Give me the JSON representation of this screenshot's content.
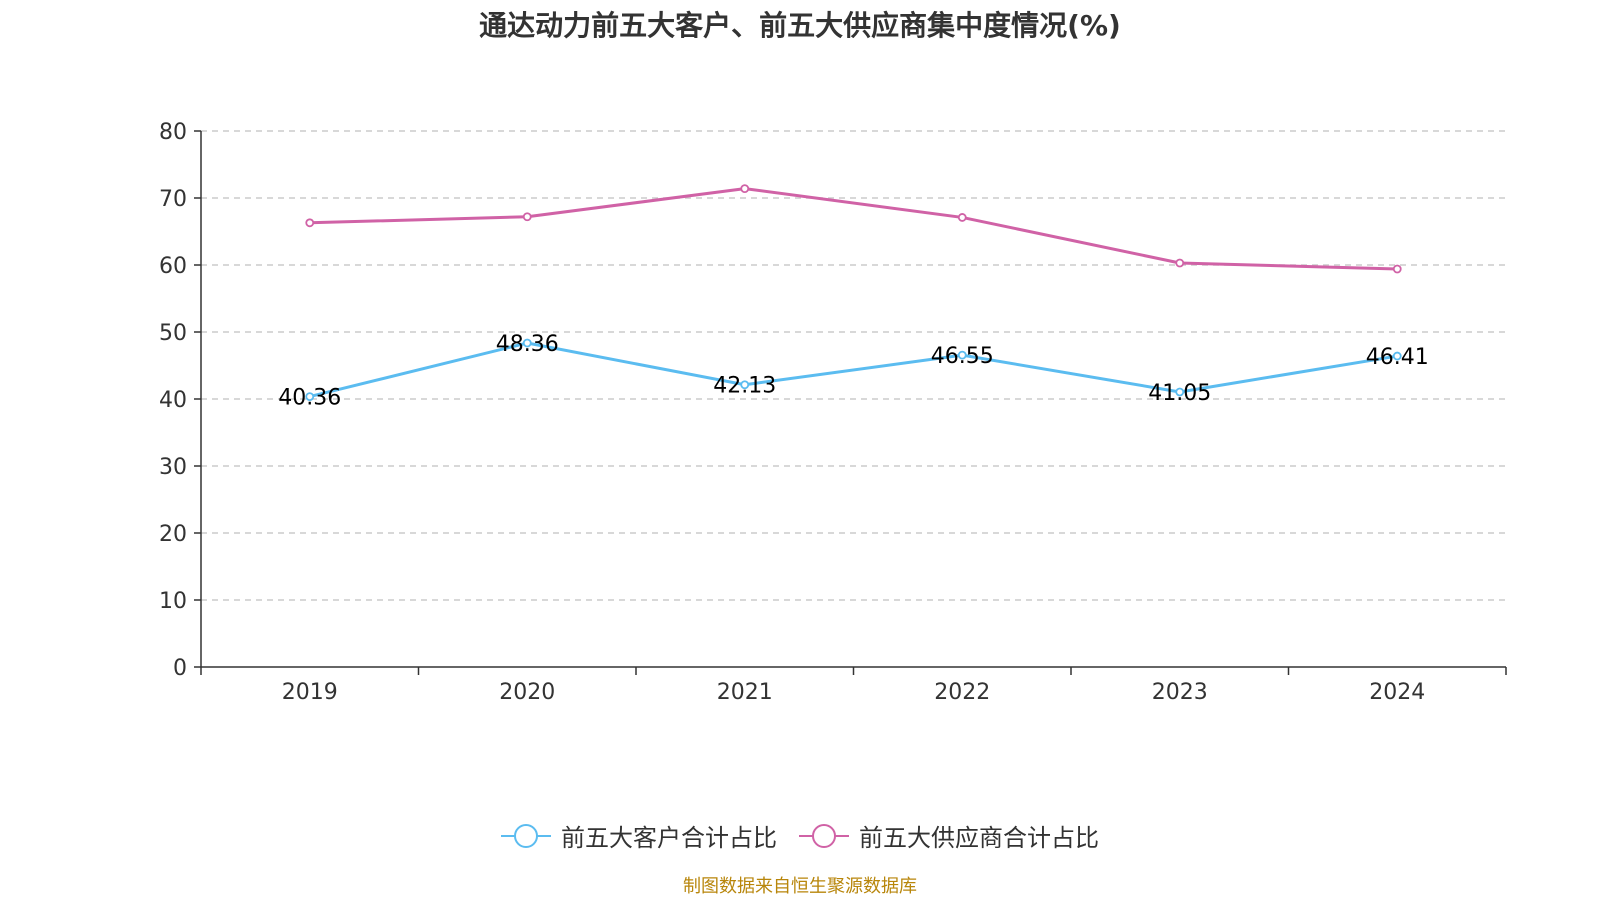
{
  "title": "通达动力前五大客户、前五大供应商集中度情况(%)",
  "source": "制图数据来自恒生聚源数据库",
  "colors": {
    "series1": "#5bbcf0",
    "series2": "#d062a6",
    "axis": "#333333",
    "grid": "#cccccc"
  },
  "chart_data": {
    "type": "line",
    "title": "通达动力前五大客户、前五大供应商集中度情况(%)",
    "categories": [
      "2019",
      "2020",
      "2021",
      "2022",
      "2023",
      "2024"
    ],
    "ylim": [
      0,
      80
    ],
    "yticks": [
      0,
      10,
      20,
      30,
      40,
      50,
      60,
      70,
      80
    ],
    "grid": true,
    "legend_position": "bottom-center",
    "series": [
      {
        "name": "前五大客户合计占比",
        "values": [
          40.36,
          48.36,
          42.13,
          46.55,
          41.05,
          46.41
        ],
        "labels": [
          "40.36",
          "48.36",
          "42.13",
          "46.55",
          "41.05",
          "46.41"
        ],
        "show_labels": true
      },
      {
        "name": "前五大供应商合计占比",
        "values": [
          66.3,
          67.2,
          71.4,
          67.1,
          60.3,
          59.4
        ],
        "show_labels": false
      }
    ]
  }
}
